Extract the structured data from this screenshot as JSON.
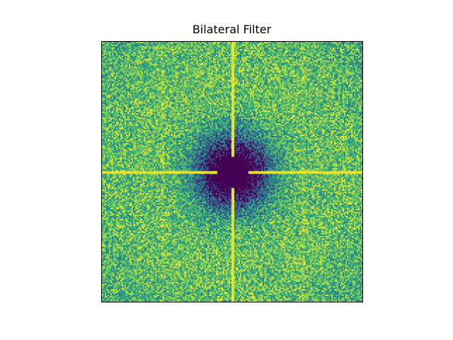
{
  "chart_data": {
    "type": "heatmap",
    "title": "Bilateral Filter",
    "xlabel": "",
    "ylabel": "",
    "axes_ticks": "hidden",
    "colormap": "viridis",
    "colormap_stops": [
      "#440154",
      "#3b528b",
      "#21918c",
      "#5ec962",
      "#fde725"
    ],
    "description": "Log-magnitude Fourier spectrum: dark low-value blob at center, noisy green-yellow surroundings, bright yellow vertical and horizontal cross lines through the center",
    "grid_cells": [
      185,
      185
    ]
  }
}
